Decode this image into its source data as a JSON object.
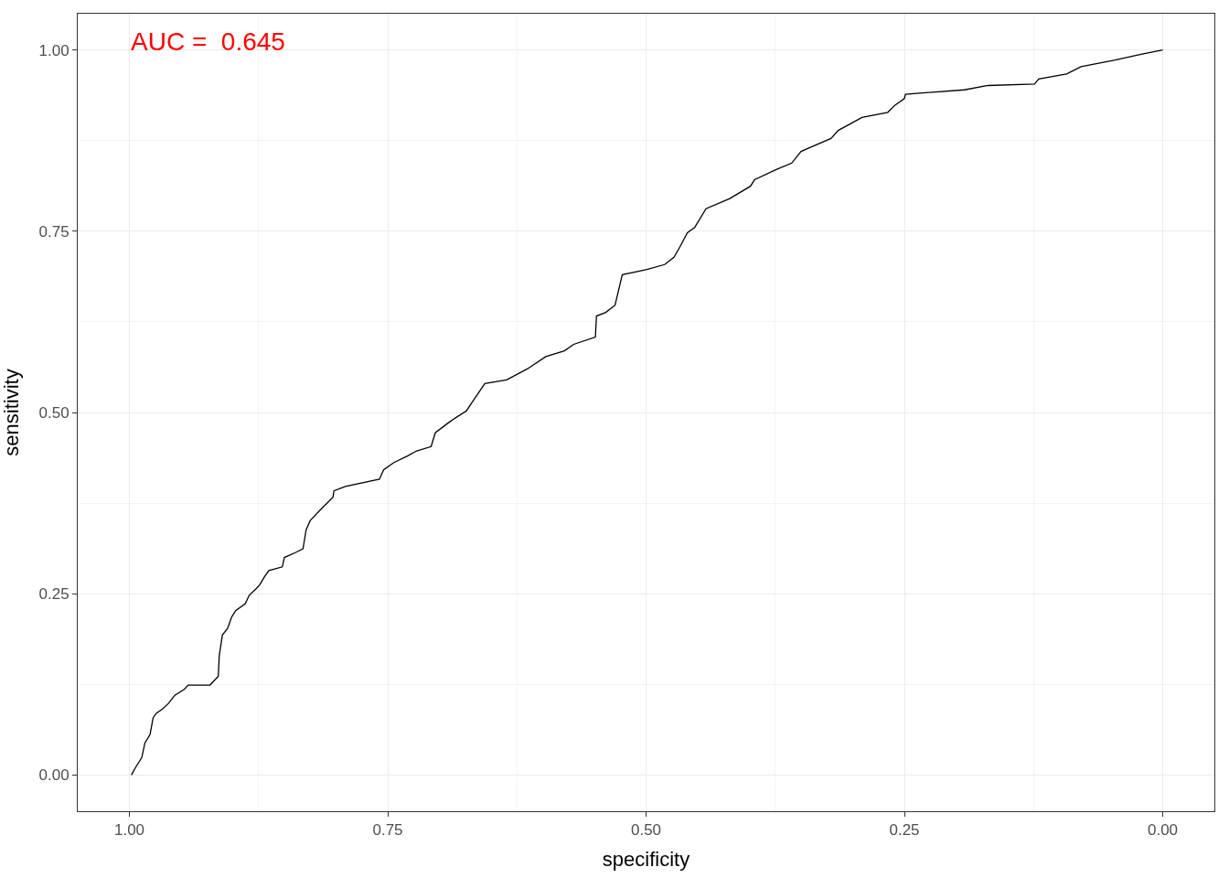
{
  "chart_data": {
    "type": "line",
    "xlabel": "specificity",
    "ylabel": "sensitivity",
    "annotations": [
      "AUC =  0.645"
    ],
    "xlim": [
      1.05,
      -0.05
    ],
    "ylim": [
      -0.05,
      1.05
    ],
    "xticks": [
      {
        "value": 1,
        "label": "1.00"
      },
      {
        "value": 0.75,
        "label": "0.75"
      },
      {
        "value": 0.5,
        "label": "0.50"
      },
      {
        "value": 0.25,
        "label": "0.25"
      },
      {
        "value": 0,
        "label": "0.00"
      }
    ],
    "yticks": [
      {
        "value": 0,
        "label": "0.00"
      },
      {
        "value": 0.25,
        "label": "0.25"
      },
      {
        "value": 0.5,
        "label": "0.50"
      },
      {
        "value": 0.75,
        "label": "0.75"
      },
      {
        "value": 1,
        "label": "1.00"
      }
    ],
    "grid": true,
    "marker": "none",
    "line_style": "solid",
    "series": [
      {
        "color": "#000000",
        "x": [
          0.998,
          0.995,
          0.992,
          0.988,
          0.985,
          0.98,
          0.977,
          0.974,
          0.968,
          0.962,
          0.956,
          0.947,
          0.943,
          0.922,
          0.914,
          0.913,
          0.91,
          0.905,
          0.901,
          0.897,
          0.888,
          0.884,
          0.878,
          0.874,
          0.869,
          0.865,
          0.852,
          0.85,
          0.839,
          0.832,
          0.829,
          0.825,
          0.815,
          0.803,
          0.802,
          0.791,
          0.758,
          0.754,
          0.744,
          0.731,
          0.722,
          0.708,
          0.704,
          0.692,
          0.685,
          0.674,
          0.667,
          0.656,
          0.635,
          0.615,
          0.597,
          0.579,
          0.57,
          0.549,
          0.548,
          0.539,
          0.53,
          0.523,
          0.5,
          0.482,
          0.473,
          0.467,
          0.46,
          0.453,
          0.442,
          0.419,
          0.399,
          0.395,
          0.374,
          0.359,
          0.35,
          0.339,
          0.321,
          0.314,
          0.291,
          0.266,
          0.259,
          0.25,
          0.249,
          0.192,
          0.169,
          0.124,
          0.12,
          0.093,
          0.079,
          0.046,
          0.021,
          0
        ],
        "values": [
          0,
          0.008,
          0.015,
          0.024,
          0.044,
          0.056,
          0.079,
          0.085,
          0.091,
          0.099,
          0.11,
          0.118,
          0.124,
          0.124,
          0.136,
          0.165,
          0.193,
          0.202,
          0.218,
          0.227,
          0.236,
          0.248,
          0.256,
          0.262,
          0.274,
          0.282,
          0.287,
          0.3,
          0.307,
          0.312,
          0.338,
          0.351,
          0.366,
          0.383,
          0.392,
          0.398,
          0.408,
          0.421,
          0.431,
          0.44,
          0.447,
          0.453,
          0.472,
          0.485,
          0.492,
          0.502,
          0.517,
          0.54,
          0.545,
          0.56,
          0.577,
          0.585,
          0.594,
          0.604,
          0.633,
          0.638,
          0.648,
          0.69,
          0.697,
          0.704,
          0.714,
          0.729,
          0.748,
          0.755,
          0.781,
          0.795,
          0.812,
          0.821,
          0.835,
          0.844,
          0.86,
          0.867,
          0.878,
          0.889,
          0.907,
          0.914,
          0.924,
          0.933,
          0.939,
          0.945,
          0.951,
          0.953,
          0.96,
          0.967,
          0.977,
          0.986,
          0.994,
          1
        ]
      }
    ]
  }
}
